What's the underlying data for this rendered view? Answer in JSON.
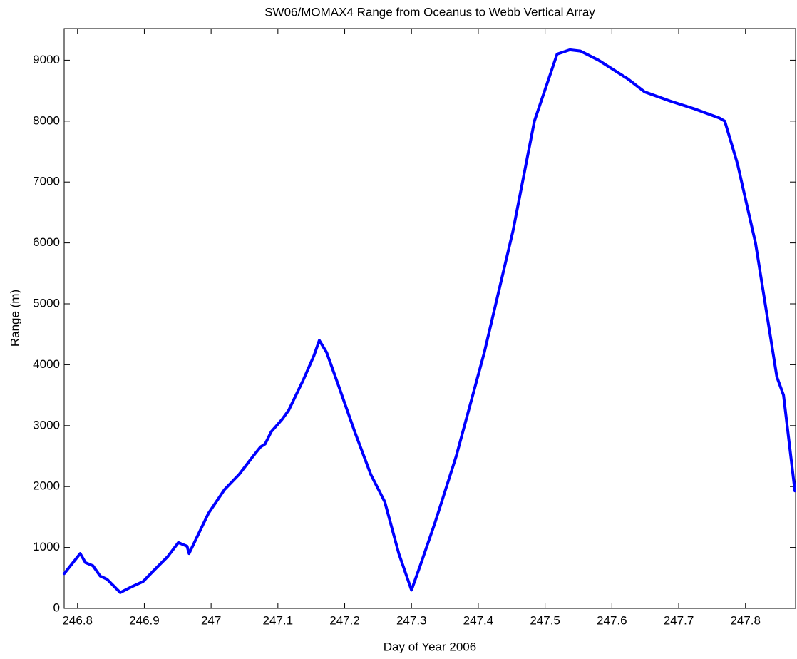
{
  "chart_data": {
    "type": "line",
    "title": "SW06/MOMAX4 Range from Oceanus to Webb Vertical Array",
    "xlabel": "Day of Year 2006",
    "ylabel": "Range (m)",
    "x": [
      246.78,
      246.804,
      246.812,
      246.823,
      246.834,
      246.844,
      246.864,
      246.882,
      246.898,
      246.914,
      246.935,
      246.951,
      246.964,
      246.967,
      246.978,
      246.996,
      247.02,
      247.042,
      247.063,
      247.074,
      247.081,
      247.09,
      247.106,
      247.116,
      247.138,
      247.154,
      247.162,
      247.173,
      247.191,
      247.215,
      247.239,
      247.26,
      247.281,
      247.3,
      247.313,
      247.335,
      247.367,
      247.409,
      247.452,
      247.484,
      247.518,
      247.537,
      247.553,
      247.58,
      247.623,
      247.649,
      247.687,
      247.724,
      247.761,
      247.769,
      247.788,
      247.815,
      247.847,
      247.857,
      247.874
    ],
    "series": [
      {
        "name": "Range",
        "color": "#0000ff",
        "values": [
          570,
          900,
          750,
          700,
          530,
          480,
          260,
          360,
          440,
          620,
          850,
          1080,
          1020,
          900,
          1150,
          1560,
          1950,
          2200,
          2500,
          2650,
          2700,
          2900,
          3100,
          3250,
          3750,
          4150,
          4400,
          4200,
          3650,
          2900,
          2200,
          1750,
          900,
          300,
          700,
          1400,
          2500,
          4200,
          6200,
          8000,
          9100,
          9170,
          9150,
          9000,
          8700,
          8480,
          8330,
          8200,
          8050,
          8000,
          7300,
          6000,
          3800,
          3500,
          1930
        ]
      }
    ],
    "xlim": [
      246.78,
      247.875
    ],
    "xticks": [
      246.8,
      246.9,
      247,
      247.1,
      247.2,
      247.3,
      247.4,
      247.5,
      247.6,
      247.7,
      247.8
    ],
    "ylim": [
      0,
      9520
    ],
    "yticks": [
      0,
      1000,
      2000,
      3000,
      4000,
      5000,
      6000,
      7000,
      8000,
      9000
    ],
    "grid": false
  }
}
